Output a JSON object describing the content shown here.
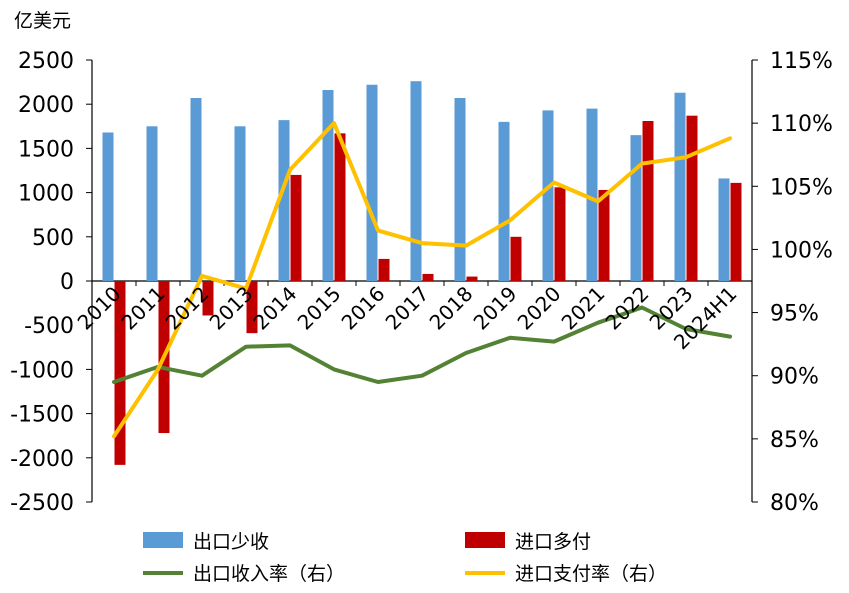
{
  "chart_data": {
    "type": "bar",
    "unit_label": "亿美元",
    "categories": [
      "2010",
      "2011",
      "2012",
      "2013",
      "2014",
      "2015",
      "2016",
      "2017",
      "2018",
      "2019",
      "2020",
      "2021",
      "2022",
      "2023",
      "2024H1"
    ],
    "left_axis": {
      "ylim": [
        -2500,
        2500
      ],
      "ticks": [
        "2500",
        "2000",
        "1500",
        "1000",
        "500",
        "0",
        "-500",
        "-1000",
        "-1500",
        "-2000",
        "-2500"
      ]
    },
    "right_axis": {
      "ylim": [
        80,
        115
      ],
      "ticks": [
        "115%",
        "110%",
        "105%",
        "100%",
        "95%",
        "90%",
        "85%",
        "80%"
      ]
    },
    "bar_series": [
      {
        "name": "出口少收",
        "color": "#5B9BD5",
        "values": [
          1680,
          1750,
          2070,
          1750,
          1820,
          2160,
          2220,
          2260,
          2070,
          1800,
          1930,
          1950,
          1650,
          2130,
          1160
        ]
      },
      {
        "name": "进口多付",
        "color": "#C00000",
        "values": [
          -2080,
          -1720,
          -390,
          -590,
          1200,
          1670,
          250,
          80,
          50,
          500,
          1060,
          1030,
          1810,
          1870,
          1110
        ]
      }
    ],
    "line_series": [
      {
        "name": "出口收入率（右）",
        "color": "#548235",
        "values": [
          89.5,
          90.7,
          90.0,
          92.3,
          92.4,
          90.5,
          89.5,
          90.0,
          91.8,
          93.0,
          92.7,
          94.2,
          95.4,
          93.7,
          93.1
        ]
      },
      {
        "name": "进口支付率（右）",
        "color": "#FFC000",
        "values": [
          85.2,
          90.5,
          97.9,
          96.9,
          106.3,
          110.0,
          101.5,
          100.5,
          100.3,
          102.3,
          105.3,
          103.8,
          106.8,
          107.3,
          108.8
        ]
      }
    ],
    "legend": [
      {
        "label": "出口少收",
        "kind": "box",
        "color": "#5B9BD5"
      },
      {
        "label": "进口多付",
        "kind": "box",
        "color": "#C00000"
      },
      {
        "label": "出口收入率（右）",
        "kind": "line",
        "color": "#548235"
      },
      {
        "label": "进口支付率（右）",
        "kind": "line",
        "color": "#FFC000"
      }
    ],
    "legend_placement": "bottom",
    "grid": false
  }
}
